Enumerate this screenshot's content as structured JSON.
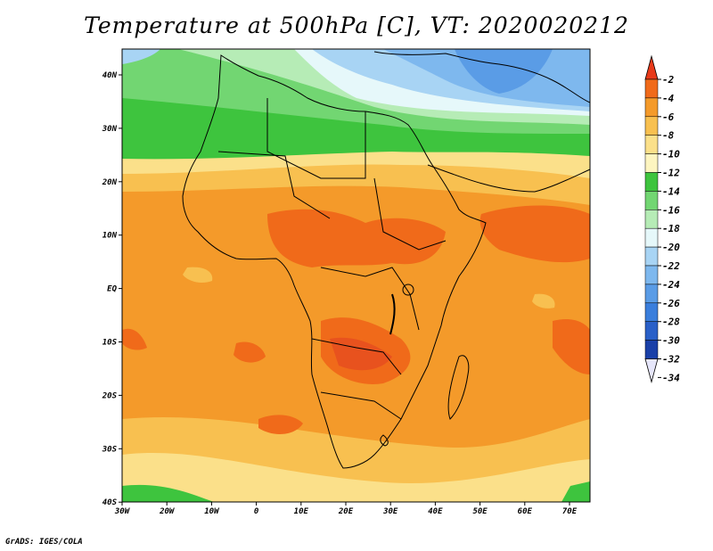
{
  "title": "Temperature at 500hPa [C], VT: 2020020212",
  "footer": "GrADS: IGES/COLA",
  "axes": {
    "x_ticks": [
      "30W",
      "20W",
      "10W",
      "0",
      "10E",
      "20E",
      "30E",
      "40E",
      "50E",
      "60E",
      "70E"
    ],
    "y_ticks": [
      "40N",
      "30N",
      "20N",
      "10N",
      "EQ",
      "10S",
      "20S",
      "30S",
      "40S"
    ]
  },
  "colorbar": {
    "labels": [
      "-2",
      "-4",
      "-6",
      "-8",
      "-10",
      "-12",
      "-14",
      "-16",
      "-18",
      "-20",
      "-22",
      "-24",
      "-26",
      "-28",
      "-30",
      "-32",
      "-34"
    ],
    "colors": [
      "#e83a1a",
      "#f06a1a",
      "#f49a2a",
      "#f8c050",
      "#fbe08a",
      "#fdf5c0",
      "#3ec43e",
      "#72d672",
      "#b6ecb6",
      "#e6f8fa",
      "#a8d4f4",
      "#7eb8ee",
      "#5a9ce6",
      "#3a7edc",
      "#2a60c8",
      "#1a40a8",
      "#0a1a78"
    ]
  },
  "map_colors": {
    "orange_warm": "#f49a2a",
    "orange_hot": "#f06a1a",
    "red_hot": "#e8521e",
    "light_orange": "#f8c050",
    "yellow": "#fbe08a",
    "green": "#3ec43e",
    "light_green": "#72d672",
    "pale_green": "#b6ecb6",
    "pale_cyan": "#e6f8fa",
    "light_blue": "#a8d4f4",
    "mid_blue": "#7eb8ee",
    "blue": "#5a9ce6"
  }
}
